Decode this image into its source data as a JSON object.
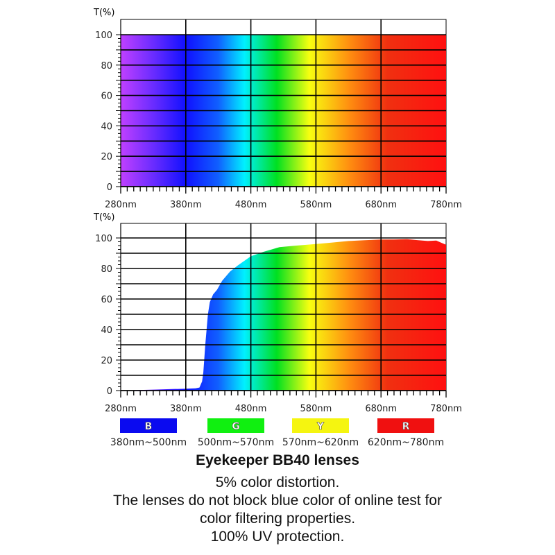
{
  "chart_data": [
    {
      "type": "area",
      "ylabel": "T(%)",
      "xlim": [
        280,
        780
      ],
      "ylim": [
        0,
        100
      ],
      "x_ticks": [
        "280nm",
        "380nm",
        "480nm",
        "580nm",
        "680nm",
        "780nm"
      ],
      "y_ticks": [
        "0",
        "20",
        "40",
        "60",
        "80",
        "100"
      ],
      "grid": true,
      "series": [
        {
          "x": [
            280,
            780
          ],
          "y": [
            100,
            100
          ]
        }
      ]
    },
    {
      "type": "area",
      "ylabel": "T(%)",
      "xlim": [
        280,
        780
      ],
      "ylim": [
        0,
        100
      ],
      "x_ticks": [
        "280nm",
        "380nm",
        "480nm",
        "580nm",
        "680nm",
        "780nm"
      ],
      "y_ticks": [
        "0",
        "20",
        "40",
        "60",
        "80",
        "100"
      ],
      "grid": true,
      "series": [
        {
          "x": [
            280,
            320,
            360,
            380,
            395,
            401,
            405,
            407,
            410,
            414,
            417,
            422,
            428,
            436,
            448,
            460,
            470,
            480,
            500,
            524,
            550,
            580,
            605,
            630,
            655,
            680,
            700,
            720,
            737,
            752,
            765,
            772,
            780
          ],
          "y": [
            0,
            0.5,
            1,
            1.2,
            1.5,
            2,
            6,
            12,
            30,
            50,
            58,
            63,
            66,
            72,
            78,
            82,
            85,
            88,
            91,
            94,
            95,
            96,
            97,
            98,
            98.5,
            99,
            99,
            99.2,
            98.5,
            98,
            98.3,
            97,
            95.5
          ]
        }
      ]
    }
  ],
  "legend": [
    {
      "letter": "B",
      "range": "380nm~500nm",
      "color": "#0a0af0"
    },
    {
      "letter": "G",
      "range": "500nm~570nm",
      "color": "#10f010"
    },
    {
      "letter": "Y",
      "range": "570nm~620nm",
      "color": "#f5f510"
    },
    {
      "letter": "R",
      "range": "620nm~780nm",
      "color": "#f01010"
    }
  ],
  "caption": {
    "title": "Eyekeeper BB40 lenses",
    "lines": [
      "5% color distortion.",
      "The lenses do not block blue color of online test for",
      "color filtering properties.",
      "100% UV protection."
    ]
  }
}
